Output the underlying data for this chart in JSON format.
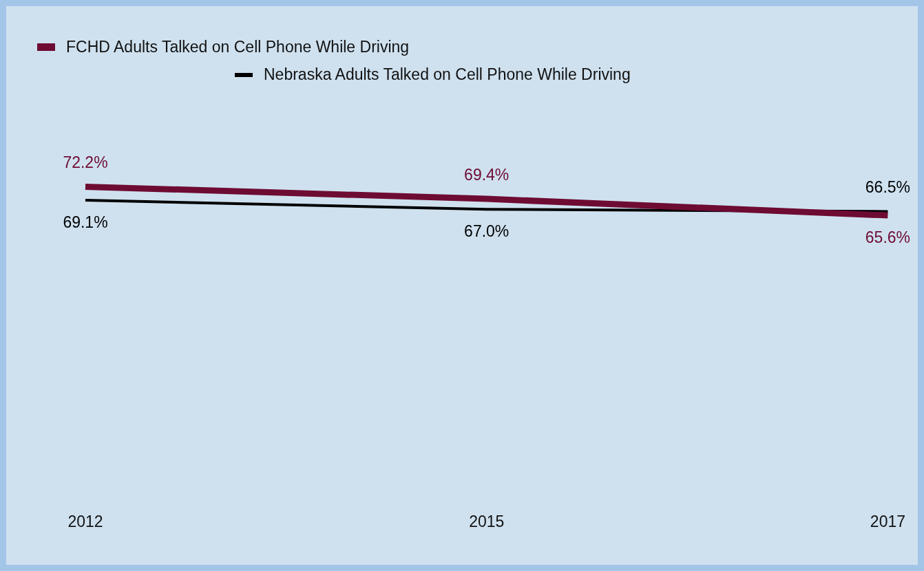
{
  "chart_data": {
    "type": "line",
    "categories": [
      "2012",
      "2015",
      "2017"
    ],
    "series": [
      {
        "name": "FCHD Adults Talked on Cell Phone While Driving",
        "color": "#6e0b33",
        "values": [
          72.2,
          69.4,
          65.6
        ],
        "value_labels": [
          "72.2%",
          "69.4%",
          "65.6%"
        ]
      },
      {
        "name": "Nebraska Adults Talked on Cell Phone While Driving",
        "color": "#000000",
        "values": [
          69.1,
          67.0,
          66.5
        ],
        "value_labels": [
          "69.1%",
          "67.0%",
          "66.5%"
        ]
      }
    ],
    "legend": "top left",
    "grid": false,
    "marker": "none"
  }
}
